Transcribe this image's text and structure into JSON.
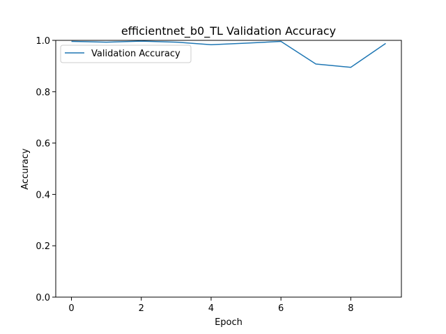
{
  "chart_data": {
    "type": "line",
    "title": "efficientnet_b0_TL Validation Accuracy",
    "xlabel": "Epoch",
    "ylabel": "Accuracy",
    "xlim": [
      -0.45,
      9.45
    ],
    "ylim": [
      0.0,
      1.0
    ],
    "x_ticks": [
      0,
      2,
      4,
      6,
      8
    ],
    "y_ticks": [
      0.0,
      0.2,
      0.4,
      0.6,
      0.8,
      1.0
    ],
    "x_tick_labels": [
      "0",
      "2",
      "4",
      "6",
      "8"
    ],
    "y_tick_labels": [
      "0.0",
      "0.2",
      "0.4",
      "0.6",
      "0.8",
      "1.0"
    ],
    "grid": false,
    "legend_position": "upper-left",
    "series": [
      {
        "name": "Validation Accuracy",
        "color": "#1f77b4",
        "x": [
          0,
          1,
          2,
          3,
          4,
          5,
          6,
          7,
          8,
          9
        ],
        "values": [
          0.996,
          0.993,
          0.997,
          0.993,
          0.983,
          0.989,
          0.996,
          0.908,
          0.895,
          0.988
        ]
      }
    ]
  }
}
